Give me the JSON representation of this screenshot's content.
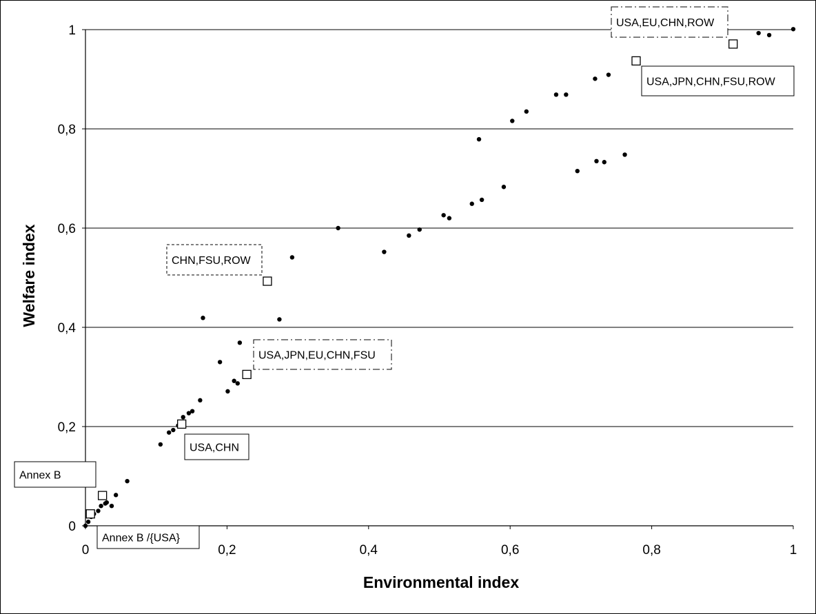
{
  "chart_data": {
    "type": "scatter",
    "title": "",
    "xlabel": "Environmental index",
    "ylabel": "Welfare index",
    "xlim": [
      0,
      1
    ],
    "ylim": [
      0,
      1
    ],
    "grid": "horizontal",
    "x_ticks": [
      "0",
      "0,2",
      "0,4",
      "0,6",
      "0,8",
      "1"
    ],
    "y_ticks": [
      "0",
      "0,2",
      "0,4",
      "0,6",
      "0,8",
      "1"
    ],
    "series": [
      {
        "marker": "dot",
        "points": [
          [
            0.0,
            0.0
          ],
          [
            0.004,
            0.008
          ],
          [
            0.008,
            0.018
          ],
          [
            0.012,
            0.024
          ],
          [
            0.018,
            0.03
          ],
          [
            0.022,
            0.04
          ],
          [
            0.028,
            0.045
          ],
          [
            0.03,
            0.047
          ],
          [
            0.037,
            0.04
          ],
          [
            0.043,
            0.062
          ],
          [
            0.059,
            0.09
          ],
          [
            0.106,
            0.164
          ],
          [
            0.118,
            0.188
          ],
          [
            0.124,
            0.193
          ],
          [
            0.131,
            0.202
          ],
          [
            0.138,
            0.219
          ],
          [
            0.146,
            0.227
          ],
          [
            0.151,
            0.231
          ],
          [
            0.162,
            0.253
          ],
          [
            0.166,
            0.419
          ],
          [
            0.19,
            0.33
          ],
          [
            0.201,
            0.271
          ],
          [
            0.21,
            0.292
          ],
          [
            0.215,
            0.287
          ],
          [
            0.218,
            0.369
          ],
          [
            0.274,
            0.416
          ],
          [
            0.292,
            0.541
          ],
          [
            0.357,
            0.6
          ],
          [
            0.422,
            0.552
          ],
          [
            0.457,
            0.585
          ],
          [
            0.472,
            0.597
          ],
          [
            0.506,
            0.626
          ],
          [
            0.514,
            0.62
          ],
          [
            0.546,
            0.649
          ],
          [
            0.556,
            0.779
          ],
          [
            0.56,
            0.657
          ],
          [
            0.591,
            0.683
          ],
          [
            0.603,
            0.816
          ],
          [
            0.623,
            0.835
          ],
          [
            0.665,
            0.869
          ],
          [
            0.679,
            0.869
          ],
          [
            0.695,
            0.715
          ],
          [
            0.72,
            0.901
          ],
          [
            0.722,
            0.735
          ],
          [
            0.733,
            0.733
          ],
          [
            0.739,
            0.909
          ],
          [
            0.762,
            0.748
          ],
          [
            0.951,
            0.993
          ],
          [
            0.966,
            0.989
          ],
          [
            1.0,
            1.001
          ]
        ]
      },
      {
        "marker": "square",
        "points": [
          [
            0.007,
            0.024
          ],
          [
            0.024,
            0.061
          ],
          [
            0.136,
            0.205
          ],
          [
            0.228,
            0.305
          ],
          [
            0.257,
            0.493
          ],
          [
            0.778,
            0.937
          ],
          [
            0.915,
            0.971
          ]
        ]
      }
    ],
    "annotations": [
      {
        "text": "Annex B /{USA}",
        "style": "solid"
      },
      {
        "text": "Annex B",
        "style": "solid"
      },
      {
        "text": "USA,CHN",
        "style": "solid"
      },
      {
        "text": "USA,JPN,EU,CHN,FSU",
        "style": "dashdot"
      },
      {
        "text": "CHN,FSU,ROW",
        "style": "dashed"
      },
      {
        "text": "USA,JPN,CHN,FSU,ROW",
        "style": "solid"
      },
      {
        "text": "USA,EU,CHN,ROW",
        "style": "dashdot"
      }
    ]
  }
}
